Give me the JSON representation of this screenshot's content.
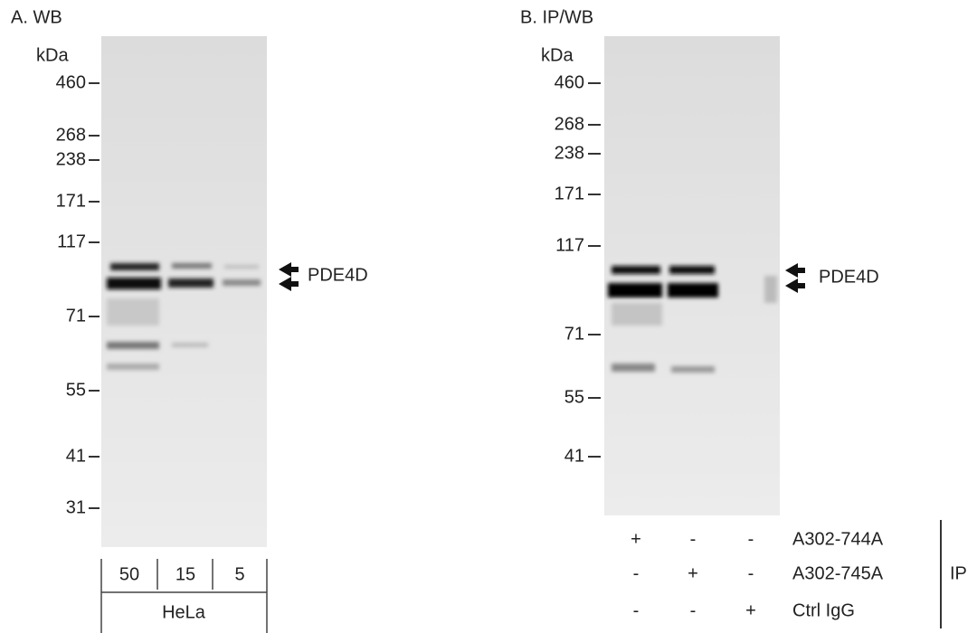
{
  "panels": [
    {
      "title": "A. WB",
      "unit": "kDa",
      "markers": [
        "460",
        "268",
        "238",
        "171",
        "117",
        "71",
        "55",
        "41",
        "31"
      ],
      "band_label": "PDE4D",
      "lanes": [
        "50",
        "15",
        "5"
      ],
      "sample": "HeLa"
    },
    {
      "title": "B. IP/WB",
      "unit": "kDa",
      "markers": [
        "460",
        "268",
        "238",
        "171",
        "117",
        "71",
        "55",
        "41"
      ],
      "band_label": "PDE4D",
      "ip_rows": [
        {
          "signs": [
            "+",
            "-",
            "-"
          ],
          "label": "A302-744A"
        },
        {
          "signs": [
            "-",
            "+",
            "-"
          ],
          "label": "A302-745A"
        },
        {
          "signs": [
            "-",
            "-",
            "+"
          ],
          "label": "Ctrl IgG"
        }
      ],
      "ip_group": "IP"
    }
  ]
}
